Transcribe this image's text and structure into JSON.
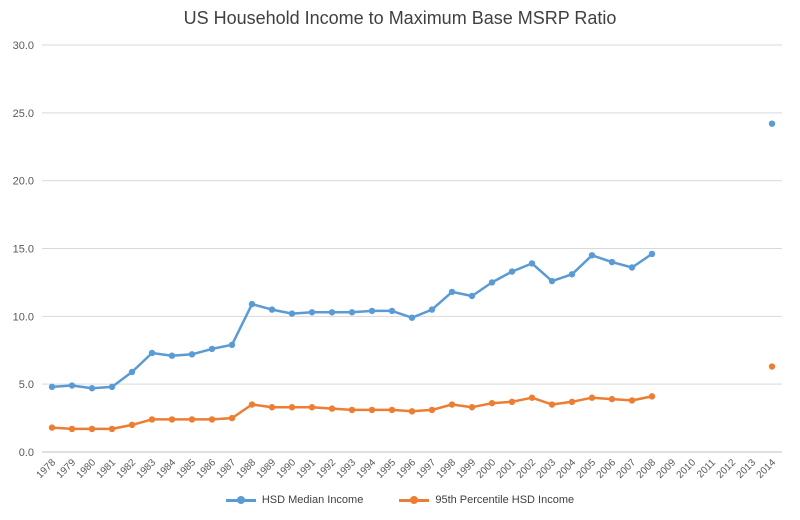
{
  "chart_data": {
    "type": "line",
    "title": "US Household Income to Maximum Base MSRP Ratio",
    "xlabel": "",
    "ylabel": "",
    "ylim": [
      0,
      30
    ],
    "yticks": [
      "0.0",
      "5.0",
      "10.0",
      "15.0",
      "20.0",
      "25.0",
      "30.0"
    ],
    "grid": true,
    "legend_position": "bottom",
    "categories": [
      "1978",
      "1979",
      "1980",
      "1981",
      "1982",
      "1983",
      "1984",
      "1985",
      "1986",
      "1987",
      "1988",
      "1989",
      "1990",
      "1991",
      "1992",
      "1993",
      "1994",
      "1995",
      "1996",
      "1997",
      "1998",
      "1999",
      "2000",
      "2001",
      "2002",
      "2003",
      "2004",
      "2005",
      "2006",
      "2007",
      "2008",
      "2009",
      "2010",
      "2011",
      "2012",
      "2013",
      "2014"
    ],
    "series": [
      {
        "name": "HSD Median Income",
        "color": "#5B9BD5",
        "values": [
          4.8,
          4.9,
          4.7,
          4.8,
          5.9,
          7.3,
          7.1,
          7.2,
          7.6,
          7.9,
          10.9,
          10.5,
          10.2,
          10.3,
          10.3,
          10.3,
          10.4,
          10.4,
          9.9,
          10.5,
          11.8,
          11.5,
          12.5,
          13.3,
          13.9,
          12.6,
          13.1,
          14.5,
          14.0,
          13.6,
          14.6,
          null,
          null,
          null,
          null,
          null,
          24.2
        ]
      },
      {
        "name": "95th Percentile HSD Income",
        "color": "#ED7D31",
        "values": [
          1.8,
          1.7,
          1.7,
          1.7,
          2.0,
          2.4,
          2.4,
          2.4,
          2.4,
          2.5,
          3.5,
          3.3,
          3.3,
          3.3,
          3.2,
          3.1,
          3.1,
          3.1,
          3.0,
          3.1,
          3.5,
          3.3,
          3.6,
          3.7,
          4.0,
          3.5,
          3.7,
          4.0,
          3.9,
          3.8,
          4.1,
          null,
          null,
          null,
          null,
          null,
          6.3
        ]
      }
    ]
  }
}
